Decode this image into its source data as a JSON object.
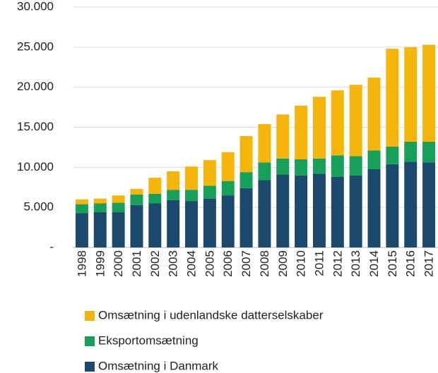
{
  "chart_data": {
    "type": "bar",
    "stacked": true,
    "categories": [
      "1998",
      "1999",
      "2000",
      "2001",
      "2002",
      "2003",
      "2004",
      "2005",
      "2006",
      "2007",
      "2008",
      "2009",
      "2010",
      "2011",
      "2012",
      "2013",
      "2014",
      "2015",
      "2016",
      "2017"
    ],
    "series": [
      {
        "name": "Omsætning i Danmark",
        "color": "#1b4a6e",
        "values": [
          4300,
          4400,
          4400,
          5300,
          5500,
          5900,
          5800,
          6100,
          6500,
          7400,
          8400,
          9100,
          9000,
          9200,
          8800,
          9000,
          9800,
          10400,
          10700,
          10600
        ]
      },
      {
        "name": "Eksportomsætning",
        "color": "#17a05a",
        "values": [
          1100,
          1100,
          1200,
          1300,
          1200,
          1300,
          1400,
          1600,
          1800,
          2000,
          2200,
          2000,
          2000,
          1900,
          2700,
          2400,
          2300,
          2200,
          2500,
          2600
        ]
      },
      {
        "name": "Omsætning i udenlandske datterselskaber",
        "color": "#f5b50a",
        "values": [
          600,
          600,
          900,
          700,
          2000,
          2300,
          2900,
          3200,
          3600,
          4500,
          4800,
          5500,
          6700,
          7700,
          8100,
          8900,
          9100,
          12200,
          11800,
          12100
        ]
      }
    ],
    "ylim": [
      0,
      30000
    ],
    "yticks": [
      {
        "value": 0,
        "label": "-"
      },
      {
        "value": 5000,
        "label": "5.000"
      },
      {
        "value": 10000,
        "label": "10.000"
      },
      {
        "value": 15000,
        "label": "15.000"
      },
      {
        "value": 20000,
        "label": "20.000"
      },
      {
        "value": 25000,
        "label": "25.000"
      },
      {
        "value": 30000,
        "label": "30.000"
      }
    ],
    "grid": true
  }
}
